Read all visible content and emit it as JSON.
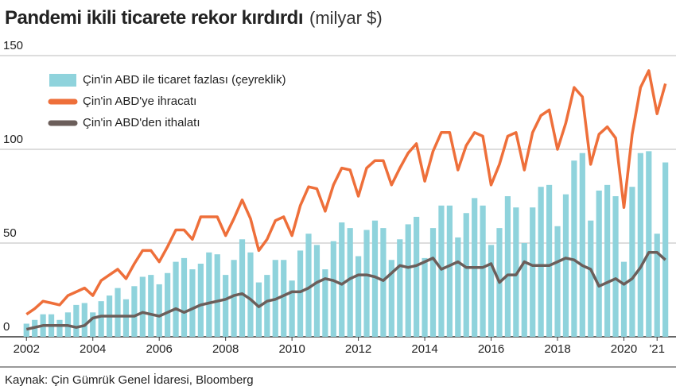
{
  "chart_data": {
    "type": "combo",
    "title": "Pandemi ikili ticarete rekor kırdırdı",
    "subtitle": "(milyar $)",
    "source": "Kaynak: Çin Gümrük Genel İdaresi, Bloomberg",
    "x": [
      2002,
      2002.25,
      2002.5,
      2002.75,
      2003,
      2003.25,
      2003.5,
      2003.75,
      2004,
      2004.25,
      2004.5,
      2004.75,
      2005,
      2005.25,
      2005.5,
      2005.75,
      2006,
      2006.25,
      2006.5,
      2006.75,
      2007,
      2007.25,
      2007.5,
      2007.75,
      2008,
      2008.25,
      2008.5,
      2008.75,
      2009,
      2009.25,
      2009.5,
      2009.75,
      2010,
      2010.25,
      2010.5,
      2010.75,
      2011,
      2011.25,
      2011.5,
      2011.75,
      2012,
      2012.25,
      2012.5,
      2012.75,
      2013,
      2013.25,
      2013.5,
      2013.75,
      2014,
      2014.25,
      2014.5,
      2014.75,
      2015,
      2015.25,
      2015.5,
      2015.75,
      2016,
      2016.25,
      2016.5,
      2016.75,
      2017,
      2017.25,
      2017.5,
      2017.75,
      2018,
      2018.25,
      2018.5,
      2018.75,
      2019,
      2019.25,
      2019.5,
      2019.75,
      2020,
      2020.25,
      2020.5,
      2020.75,
      2021,
      2021.25
    ],
    "series": [
      {
        "name": "Çin'in ABD ile ticaret fazlası (çeyreklik)",
        "type": "bar",
        "color": "#8fd3dc",
        "values": [
          7,
          9,
          12,
          12,
          9,
          13,
          17,
          18,
          13,
          19,
          22,
          26,
          20,
          27,
          32,
          33,
          28,
          34,
          40,
          42,
          36,
          39,
          45,
          44,
          33,
          41,
          52,
          45,
          29,
          33,
          41,
          41,
          30,
          46,
          55,
          49,
          36,
          51,
          61,
          58,
          43,
          57,
          62,
          58,
          41,
          52,
          60,
          64,
          42,
          58,
          70,
          70,
          53,
          66,
          74,
          70,
          49,
          58,
          75,
          69,
          50,
          69,
          80,
          81,
          59,
          76,
          94,
          98,
          62,
          78,
          81,
          75,
          40,
          80,
          98,
          99,
          55,
          93
        ]
      },
      {
        "name": "Çin'in ABD'ye ihracatı",
        "type": "line",
        "color": "#ee6f3a",
        "values": [
          12,
          15,
          19,
          18,
          17,
          22,
          24,
          26,
          22,
          30,
          33,
          36,
          31,
          39,
          46,
          46,
          40,
          48,
          57,
          57,
          52,
          64,
          64,
          64,
          54,
          63,
          73,
          63,
          46,
          52,
          62,
          64,
          54,
          70,
          80,
          79,
          67,
          81,
          90,
          89,
          75,
          90,
          94,
          94,
          81,
          90,
          98,
          103,
          83,
          99,
          109,
          109,
          89,
          102,
          109,
          107,
          81,
          92,
          107,
          109,
          89,
          109,
          118,
          121,
          100,
          114,
          133,
          128,
          92,
          108,
          112,
          106,
          69,
          108,
          133,
          142,
          119,
          135
        ]
      },
      {
        "name": "Çin'in ABD'den ithalatı",
        "type": "line",
        "color": "#6b5e5a",
        "values": [
          4,
          5,
          6,
          6,
          6,
          6,
          5,
          6,
          10,
          11,
          11,
          11,
          11,
          11,
          13,
          12,
          11,
          13,
          15,
          13,
          15,
          17,
          18,
          19,
          20,
          22,
          23,
          20,
          16,
          19,
          20,
          22,
          24,
          24,
          26,
          29,
          31,
          30,
          28,
          31,
          33,
          33,
          32,
          30,
          34,
          38,
          37,
          38,
          40,
          42,
          36,
          38,
          40,
          37,
          37,
          37,
          39,
          29,
          33,
          33,
          40,
          38,
          38,
          38,
          40,
          42,
          41,
          38,
          36,
          27,
          29,
          31,
          28,
          31,
          37,
          45,
          45,
          41
        ]
      }
    ],
    "xlim": [
      2001.85,
      2021.45
    ],
    "xticks": [
      2002,
      2004,
      2006,
      2008,
      2010,
      2012,
      2014,
      2016,
      2018,
      2020,
      {
        "value": 2021,
        "label": "'21"
      }
    ],
    "ylim": [
      0,
      150
    ],
    "yticks": [
      0,
      50,
      100,
      150
    ],
    "grid": true
  }
}
